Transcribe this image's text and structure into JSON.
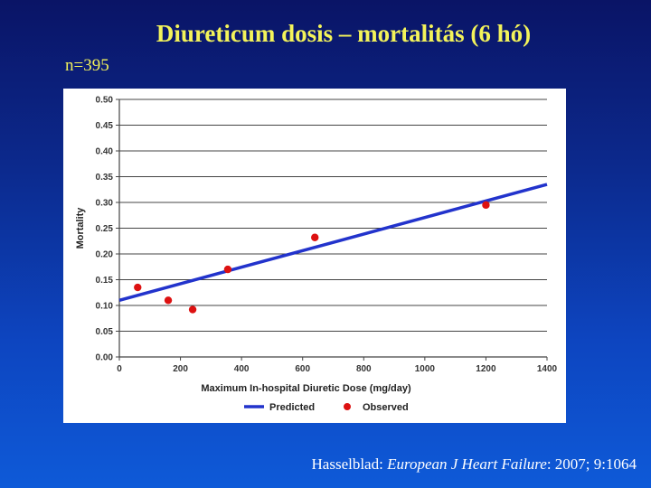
{
  "slide": {
    "title": "Diureticum dosis – mortalitás (6 hó)",
    "sample_label": "n=395",
    "citation": {
      "author": "Hasselblad: ",
      "journal": "European J Heart Failure",
      "details": ": 2007; 9:1064"
    },
    "colors": {
      "title": "#f3f35a",
      "predicted_line": "#2233cc",
      "observed_point": "#dd1111"
    }
  },
  "chart_data": {
    "type": "scatter",
    "title": "",
    "xlabel": "Maximum In-hospital Diuretic Dose (mg/day)",
    "ylabel": "Mortality",
    "xlim": [
      0,
      1400
    ],
    "ylim": [
      0,
      0.5
    ],
    "x_ticks": [
      0,
      200,
      400,
      600,
      800,
      1000,
      1200,
      1400
    ],
    "y_ticks": [
      0.0,
      0.05,
      0.1,
      0.15,
      0.2,
      0.25,
      0.3,
      0.35,
      0.4,
      0.45,
      0.5
    ],
    "x_tick_labels": [
      "0",
      "200",
      "400",
      "600",
      "800",
      "1000",
      "1200",
      "1400"
    ],
    "y_tick_labels": [
      "0.00",
      "0.05",
      "0.10",
      "0.15",
      "0.20",
      "0.25",
      "0.30",
      "0.35",
      "0.40",
      "0.45",
      "0.50"
    ],
    "grid": "horizontal",
    "series": [
      {
        "name": "Predicted",
        "kind": "line",
        "x": [
          0,
          1400
        ],
        "y": [
          0.11,
          0.335
        ]
      },
      {
        "name": "Observed",
        "kind": "points",
        "x": [
          60,
          160,
          240,
          355,
          640,
          1200
        ],
        "y": [
          0.135,
          0.11,
          0.092,
          0.17,
          0.232,
          0.295
        ]
      }
    ],
    "legend": [
      "Predicted",
      "Observed"
    ],
    "legend_position": "bottom"
  }
}
